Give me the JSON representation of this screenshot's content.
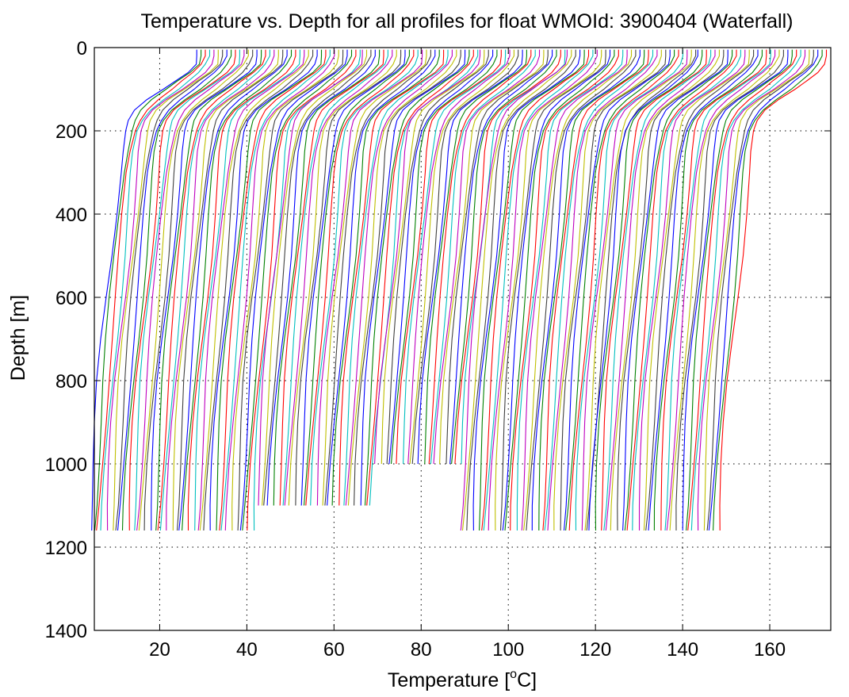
{
  "chart_data": {
    "type": "line",
    "title": "Temperature vs. Depth for all profiles for float WMOId: 3900404 (Waterfall)",
    "xlabel": "Temperature [°C]",
    "xlabel_main": "Temperature [",
    "xlabel_sup": "o",
    "xlabel_unit": "C]",
    "ylabel": "Depth [m]",
    "xlim": [
      5,
      174
    ],
    "ylim": [
      0,
      1400
    ],
    "y_reversed": true,
    "grid": true,
    "legend": "none",
    "x_ticks": [
      20,
      40,
      60,
      80,
      100,
      120,
      140,
      160
    ],
    "y_ticks": [
      0,
      200,
      400,
      600,
      800,
      1000,
      1200,
      1400
    ],
    "x_tick_labels": [
      "20",
      "40",
      "60",
      "80",
      "100",
      "120",
      "140",
      "160"
    ],
    "y_tick_labels": [
      "0",
      "200",
      "400",
      "600",
      "800",
      "1000",
      "1200",
      "1400"
    ],
    "color_cycle": [
      "#0000ff",
      "#008000",
      "#ff0000",
      "#00bfbf",
      "#bf00bf",
      "#bfbf00",
      "#404040"
    ],
    "profile_count": 130,
    "offset_per_profile_degC": 1.0,
    "series_template": {
      "depth_m": [
        5,
        20,
        40,
        60,
        80,
        100,
        125,
        150,
        175,
        200,
        250,
        300,
        400,
        500,
        600,
        700,
        800,
        900,
        1000,
        1100,
        1160
      ],
      "temp_rel_degC": [
        0,
        0,
        -0.6,
        -2.4,
        -5.0,
        -7.5,
        -11.0,
        -13.8,
        -15.4,
        -16.3,
        -17.2,
        -17.8,
        -18.7,
        -19.6,
        -20.6,
        -21.6,
        -22.5,
        -23.2,
        -23.8,
        -24.3,
        -24.6
      ]
    },
    "series": [
      {
        "surface_temp_start": 28.5,
        "surface_temp_end": 66.0,
        "max_depth": 1160
      },
      {
        "surface_temp_start": 66.5,
        "surface_temp_end": 93.0,
        "max_depth": 1100
      },
      {
        "surface_temp_start": 93.5,
        "surface_temp_end": 113.0,
        "max_depth": 1040
      },
      {
        "surface_temp_start": 113.5,
        "surface_temp_end": 143.0,
        "max_depth": 1160
      },
      {
        "surface_temp_start": 143.5,
        "surface_temp_end": 173.0,
        "max_depth": 1160
      }
    ]
  }
}
